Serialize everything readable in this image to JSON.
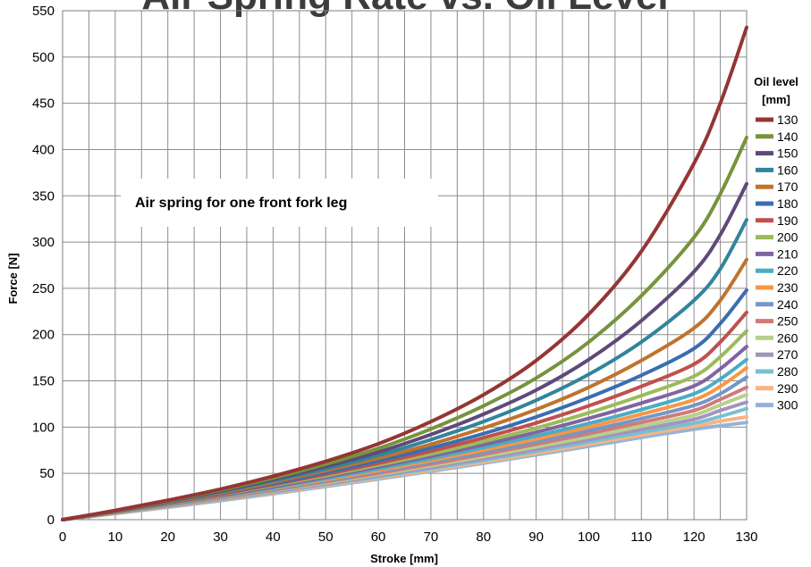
{
  "chart_data": {
    "type": "line",
    "title": "Air Spring Rate vs. Oil Level",
    "annotation": "Air spring for one front fork leg",
    "xlabel": "Stroke [mm]",
    "ylabel": "Force [N]",
    "xlim": [
      0,
      130
    ],
    "ylim": [
      0,
      550
    ],
    "x_ticks": [
      0,
      10,
      20,
      30,
      40,
      50,
      60,
      70,
      80,
      90,
      100,
      110,
      120,
      130
    ],
    "y_ticks": [
      0,
      50,
      100,
      150,
      200,
      250,
      300,
      350,
      400,
      450,
      500,
      550
    ],
    "grid": true,
    "legend_title_line1": "Oil level",
    "legend_title_line2": "[mm]",
    "legend_position": "right",
    "x": [
      0,
      10,
      20,
      30,
      40,
      50,
      60,
      70,
      80,
      90,
      100,
      110,
      120,
      125,
      130
    ],
    "series": [
      {
        "name": "130",
        "color": "#943634",
        "values": [
          0,
          10,
          21,
          33,
          47,
          63,
          82,
          106,
          135,
          172,
          222,
          290,
          385,
          450,
          532
        ]
      },
      {
        "name": "140",
        "color": "#77933c",
        "values": [
          0,
          9.8,
          20.5,
          32,
          45,
          60,
          77,
          98,
          123,
          153,
          192,
          242,
          305,
          352,
          413
        ]
      },
      {
        "name": "150",
        "color": "#5f497a",
        "values": [
          0,
          9.6,
          20,
          31,
          43.5,
          57.5,
          73,
          92,
          114,
          140,
          173,
          215,
          268,
          308,
          363
        ]
      },
      {
        "name": "160",
        "color": "#31849b",
        "values": [
          0,
          9.4,
          19.5,
          30,
          42,
          55,
          69.5,
          86.5,
          106,
          129,
          157,
          192,
          237,
          271,
          324
        ]
      },
      {
        "name": "170",
        "color": "#c0732e",
        "values": [
          0,
          9.2,
          19,
          29,
          40.5,
          53,
          66.5,
          81.5,
          99,
          119,
          143,
          172,
          207,
          237,
          281
        ]
      },
      {
        "name": "180",
        "color": "#3b6db1",
        "values": [
          0,
          9,
          18.5,
          28.5,
          39,
          51,
          63.5,
          77.5,
          93,
          111,
          132,
          156,
          185,
          212,
          248
        ]
      },
      {
        "name": "190",
        "color": "#c0504d",
        "values": [
          0,
          8.8,
          18,
          27.5,
          38,
          49,
          61,
          74,
          88.5,
          104.5,
          123,
          144,
          168,
          192,
          224
        ]
      },
      {
        "name": "200",
        "color": "#9bbb59",
        "values": [
          0,
          8.6,
          17.5,
          27,
          37,
          47.5,
          59,
          71,
          84.5,
          99,
          115.5,
          134,
          155,
          176,
          204
        ]
      },
      {
        "name": "210",
        "color": "#8064a2",
        "values": [
          0,
          8.4,
          17,
          26,
          35.5,
          46,
          57,
          68.5,
          81,
          94.5,
          109.5,
          126,
          144.5,
          163,
          187
        ]
      },
      {
        "name": "220",
        "color": "#4bacc6",
        "values": [
          0,
          8.2,
          16.5,
          25.5,
          34.5,
          44.5,
          55,
          66,
          78,
          90.5,
          104,
          119,
          136,
          152,
          173
        ]
      },
      {
        "name": "230",
        "color": "#f79646",
        "values": [
          0,
          8,
          16.2,
          24.8,
          33.7,
          43.2,
          53.2,
          63.8,
          75.2,
          87.2,
          100,
          114,
          129.5,
          144,
          164
        ]
      },
      {
        "name": "240",
        "color": "#7596c8",
        "values": [
          0,
          7.8,
          15.8,
          24.1,
          32.8,
          42,
          51.7,
          62,
          72.8,
          84.2,
          96.2,
          109.2,
          123.5,
          136,
          154
        ]
      },
      {
        "name": "250",
        "color": "#d07b79",
        "values": [
          0,
          7.6,
          15.4,
          23.5,
          32,
          41,
          50.2,
          60,
          70.5,
          81.5,
          93,
          105,
          118,
          130,
          143
        ]
      },
      {
        "name": "260",
        "color": "#b7d08c",
        "values": [
          0,
          7.4,
          15,
          22.9,
          31.2,
          39.9,
          48.9,
          58.3,
          68.3,
          78.7,
          89.5,
          101,
          113,
          124,
          135
        ]
      },
      {
        "name": "270",
        "color": "#a294bd",
        "values": [
          0,
          7.2,
          14.6,
          22.3,
          30.4,
          38.8,
          47.5,
          56.6,
          66.1,
          76,
          86.5,
          97.5,
          108.5,
          118,
          127
        ]
      },
      {
        "name": "280",
        "color": "#78c0d4",
        "values": [
          0,
          7,
          14.2,
          21.7,
          29.6,
          37.8,
          46.3,
          55.1,
          64.3,
          73.9,
          83.9,
          94.3,
          104.3,
          111.5,
          120
        ]
      },
      {
        "name": "290",
        "color": "#f9b382",
        "values": [
          0,
          6.8,
          13.8,
          21.1,
          28.8,
          36.8,
          45,
          53.6,
          62.5,
          71.8,
          81.5,
          91.5,
          101,
          106.5,
          111
        ]
      },
      {
        "name": "300",
        "color": "#95b3d7",
        "values": [
          0,
          6.6,
          13.4,
          20.5,
          28,
          35.8,
          43.9,
          52.3,
          61,
          70,
          79.3,
          88.9,
          97.7,
          101.5,
          105
        ]
      }
    ]
  }
}
